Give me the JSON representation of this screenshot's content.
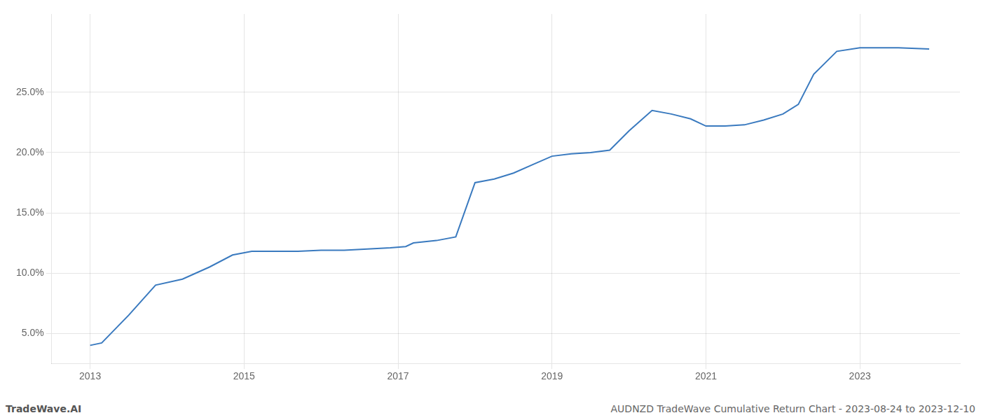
{
  "chart_data": {
    "type": "line",
    "title": "AUDNZD TradeWave Cumulative Return Chart - 2023-08-24 to 2023-12-10",
    "annotations": [
      "TradeWave.AI"
    ],
    "x": [
      2013.0,
      2013.15,
      2013.5,
      2013.85,
      2014.2,
      2014.55,
      2014.85,
      2015.1,
      2015.4,
      2015.7,
      2016.0,
      2016.3,
      2016.6,
      2016.9,
      2017.1,
      2017.2,
      2017.5,
      2017.75,
      2018.0,
      2018.25,
      2018.5,
      2018.75,
      2019.0,
      2019.25,
      2019.5,
      2019.75,
      2020.0,
      2020.3,
      2020.55,
      2020.8,
      2021.0,
      2021.25,
      2021.5,
      2021.75,
      2022.0,
      2022.2,
      2022.4,
      2022.7,
      2023.0,
      2023.5,
      2023.9
    ],
    "values": [
      0.04,
      0.042,
      0.065,
      0.09,
      0.095,
      0.105,
      0.115,
      0.118,
      0.118,
      0.118,
      0.119,
      0.119,
      0.12,
      0.121,
      0.122,
      0.125,
      0.127,
      0.13,
      0.175,
      0.178,
      0.183,
      0.19,
      0.197,
      0.199,
      0.2,
      0.202,
      0.218,
      0.235,
      0.232,
      0.228,
      0.222,
      0.222,
      0.223,
      0.227,
      0.232,
      0.24,
      0.265,
      0.284,
      0.287,
      0.287,
      0.286
    ],
    "color": "#3a7abf",
    "xlim": [
      2012.5,
      2024.3
    ],
    "xticks": [
      2013,
      2015,
      2017,
      2019,
      2021,
      2023
    ],
    "ylim": [
      0.025,
      0.315
    ],
    "yticks": [
      {
        "value": 0.05,
        "label": "5.0%"
      },
      {
        "value": 0.1,
        "label": "10.0%"
      },
      {
        "value": 0.15,
        "label": "15.0%"
      },
      {
        "value": 0.2,
        "label": "20.0%"
      },
      {
        "value": 0.25,
        "label": "25.0%"
      }
    ],
    "grid": true
  }
}
